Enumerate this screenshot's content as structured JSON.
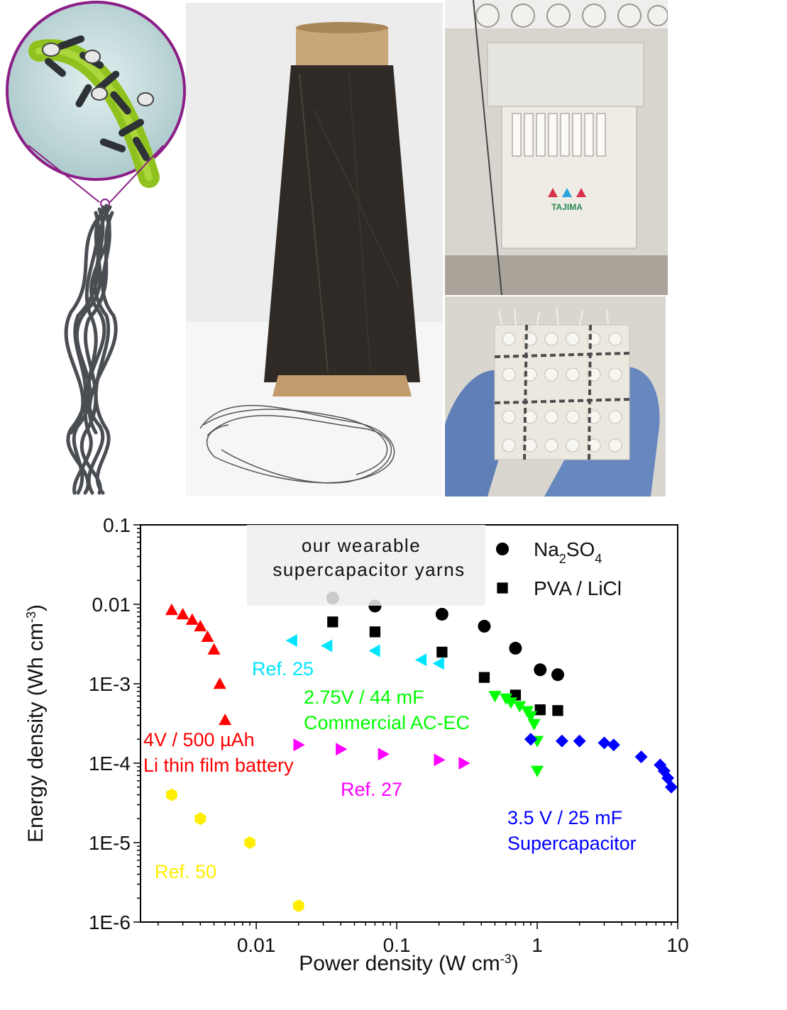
{
  "figure": {
    "panels": [
      {
        "name": "yarn-schematic",
        "description_icon": "twisted-yarn-with-magnified-fiber"
      },
      {
        "name": "yarn-cone-photo",
        "description_icon": "yarn-cone"
      },
      {
        "name": "embroidery-machine-photo",
        "description_icon": "embroidery-machine",
        "logo_text": "TAJIMA"
      },
      {
        "name": "woven-textile-photo",
        "description_icon": "gloved-hand-holding-textile"
      }
    ]
  },
  "chart_data": {
    "type": "scatter",
    "x_scale": "log",
    "y_scale": "log",
    "xlim": [
      0.0015,
      10
    ],
    "ylim": [
      1e-06,
      0.1
    ],
    "xlabel": "Power density (W cm",
    "xlabel_sup": "-3",
    "xlabel_end": ")",
    "ylabel": "Energy density (Wh cm",
    "ylabel_sup": "-3",
    "ylabel_end": ")",
    "x_ticks": [
      {
        "value": 0.01,
        "label": "0.01"
      },
      {
        "value": 0.1,
        "label": "0.1"
      },
      {
        "value": 1,
        "label": "1"
      },
      {
        "value": 10,
        "label": "10"
      }
    ],
    "y_ticks": [
      {
        "value": 0.1,
        "label": "0.1"
      },
      {
        "value": 0.01,
        "label": "0.01"
      },
      {
        "value": 0.001,
        "label": "1E-3"
      },
      {
        "value": 0.0001,
        "label": "1E-4"
      },
      {
        "value": 1e-05,
        "label": "1E-5"
      },
      {
        "value": 1e-06,
        "label": "1E-6"
      }
    ],
    "legend_box": [
      "our wearable",
      "supercapacitor yarns"
    ],
    "legend": [
      {
        "label_parts": [
          "Na",
          "2",
          "SO",
          "4"
        ],
        "marker": "circle",
        "color": "#000000"
      },
      {
        "label_parts": [
          "PVA / LiCl"
        ],
        "marker": "square",
        "color": "#000000"
      }
    ],
    "series": [
      {
        "name": "Na2SO4",
        "marker": "circle",
        "color": "#000000",
        "x": [
          0.035,
          0.07,
          0.21,
          0.42,
          0.7,
          1.05,
          1.4
        ],
        "y": [
          0.012,
          0.0095,
          0.0075,
          0.0053,
          0.0028,
          0.0015,
          0.0013
        ]
      },
      {
        "name": "PVA / LiCl",
        "marker": "square",
        "color": "#000000",
        "x": [
          0.035,
          0.07,
          0.21,
          0.42,
          0.7,
          1.05,
          1.4
        ],
        "y": [
          0.006,
          0.0045,
          0.0025,
          0.0012,
          0.00072,
          0.00047,
          0.00046
        ]
      },
      {
        "marker": "triangle-up",
        "color": "#ff0000",
        "x": [
          0.0025,
          0.003,
          0.0035,
          0.004,
          0.0045,
          0.005,
          0.0055,
          0.006
        ],
        "y": [
          0.0085,
          0.0075,
          0.0064,
          0.0053,
          0.0039,
          0.0027,
          0.001,
          0.00035
        ]
      },
      {
        "marker": "triangle-left",
        "color": "#00e5ff",
        "x": [
          0.018,
          0.032,
          0.07,
          0.15,
          0.2
        ],
        "y": [
          0.0035,
          0.003,
          0.0026,
          0.002,
          0.0018
        ]
      },
      {
        "marker": "triangle-down",
        "color": "#00ff00",
        "x": [
          0.5,
          0.6,
          0.65,
          0.75,
          0.85,
          0.9,
          0.95,
          1.0,
          1.0
        ],
        "y": [
          0.0007,
          0.00065,
          0.00058,
          0.00052,
          0.00045,
          0.00039,
          0.00031,
          0.00019,
          8e-05
        ]
      },
      {
        "marker": "diamond",
        "color": "#0000ff",
        "x": [
          0.9,
          1.5,
          2.0,
          3.0,
          3.5,
          5.5,
          7.5,
          8.0,
          8.5,
          9.0
        ],
        "y": [
          0.0002,
          0.00019,
          0.00019,
          0.00018,
          0.00017,
          0.00012,
          9.5e-05,
          8e-05,
          6.5e-05,
          5e-05
        ]
      },
      {
        "marker": "triangle-right",
        "color": "#ff00ff",
        "x": [
          0.02,
          0.04,
          0.08,
          0.2,
          0.3
        ],
        "y": [
          0.00017,
          0.00015,
          0.00013,
          0.00011,
          0.0001
        ]
      },
      {
        "marker": "hexagon",
        "color": "#ffee00",
        "x": [
          0.0025,
          0.004,
          0.009,
          0.02
        ],
        "y": [
          4e-05,
          2e-05,
          1e-05,
          1.6e-06
        ]
      }
    ],
    "annotations": [
      {
        "lines": [
          "Ref. 25"
        ],
        "color": "#00e5ff"
      },
      {
        "lines": [
          "2.75V / 44 mF",
          "Commercial AC-EC"
        ],
        "color": "#00ff00"
      },
      {
        "lines": [
          "4V / 500 µAh",
          "Li thin film battery"
        ],
        "color": "#ff0000"
      },
      {
        "lines": [
          "Ref. 27"
        ],
        "color": "#ff00ff"
      },
      {
        "lines": [
          "3.5 V / 25 mF",
          "Supercapacitor"
        ],
        "color": "#0000ff"
      },
      {
        "lines": [
          "Ref. 50"
        ],
        "color": "#ffee00"
      }
    ]
  }
}
